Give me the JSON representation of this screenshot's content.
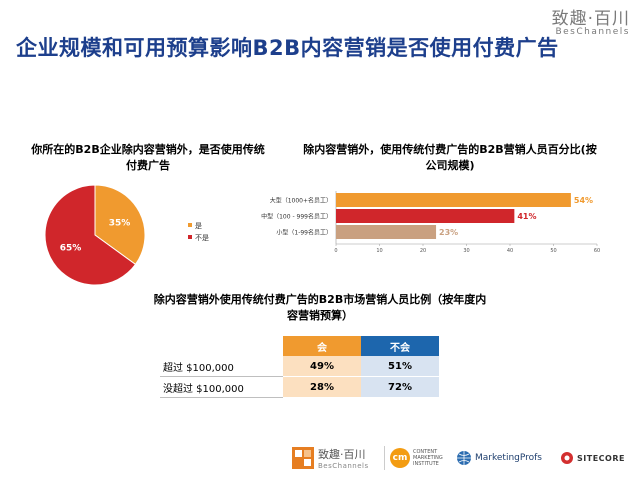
{
  "header": {
    "title": "企业规模和可用预算影响B2B内容营销是否使用付费广告",
    "brand_cn": "致趣·百川",
    "brand_en": "BesChannels"
  },
  "chart_data": [
    {
      "type": "pie",
      "title": "你所在的B2B企业除内容营销外，是否使用传统付费广告",
      "categories": [
        "是",
        "不是"
      ],
      "values": [
        35,
        65
      ],
      "value_labels": [
        "35%",
        "65%"
      ],
      "colors": [
        "#f09a2f",
        "#d0262b"
      ],
      "legend_position": "right"
    },
    {
      "type": "bar",
      "orientation": "horizontal",
      "title": "除内容营销外，使用传统付费广告的B2B营销人员百分比(按公司规模)",
      "categories": [
        "大型（1000+名员工）",
        "中型（100 - 999名员工）",
        "小型（1-99名员工）"
      ],
      "values": [
        54,
        41,
        23
      ],
      "value_labels": [
        "54%",
        "41%",
        "23%"
      ],
      "colors": [
        "#f09a2f",
        "#d0262b",
        "#c9a080"
      ],
      "xlim": [
        0,
        60
      ],
      "xticks": [
        0,
        10,
        20,
        30,
        40,
        50,
        60
      ],
      "grid": false
    },
    {
      "type": "table",
      "title": "除内容营销外使用传统付费广告的B2B市场营销人员比例（按年度内容营销预算）",
      "columns": [
        "会",
        "不会"
      ],
      "rows": [
        {
          "label": "超过 $100,000",
          "values": [
            "49%",
            "51%"
          ]
        },
        {
          "label": "没超过 $100,000",
          "values": [
            "28%",
            "72%"
          ]
        }
      ],
      "header_colors": [
        "#f09a2f",
        "#1d66ad"
      ]
    }
  ],
  "footer": {
    "logo1_cn": "致趣·百川",
    "logo1_en": "BesChannels",
    "logo2_mark": "cm",
    "logo2_line1": "CONTENT",
    "logo2_line2": "MARKETING",
    "logo2_line3": "INSTITUTE",
    "logo3": "MarketingProfs",
    "logo4": "SITECORE"
  }
}
